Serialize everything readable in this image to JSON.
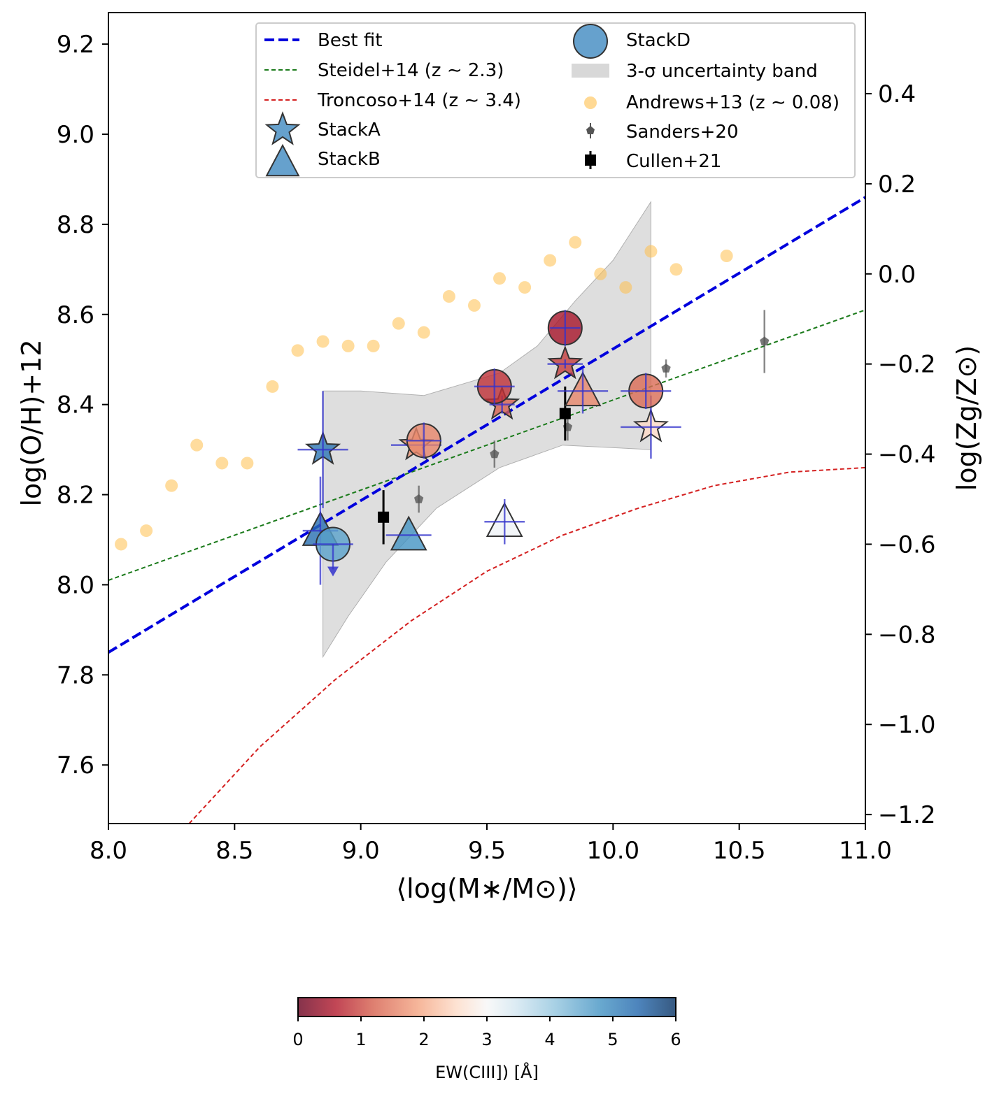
{
  "chart_data": {
    "type": "scatter",
    "xlabel": "⟨log(M∗/M⊙)⟩",
    "ylabel": "log(O/H)+12",
    "y2label": "log(Zg/Z⊙)",
    "xlim": [
      8.0,
      11.0
    ],
    "ylim": [
      7.47,
      9.27
    ],
    "y2lim": [
      -1.22,
      0.58
    ],
    "x_ticks": [
      "8.0",
      "8.5",
      "9.0",
      "9.5",
      "10.0",
      "10.5",
      "11.0"
    ],
    "y_ticks": [
      "7.6",
      "7.8",
      "8.0",
      "8.2",
      "8.4",
      "8.6",
      "8.8",
      "9.0",
      "9.2"
    ],
    "y2_ticks": [
      "−1.2",
      "−1.0",
      "−0.8",
      "−0.6",
      "−0.4",
      "−0.2",
      "0.0",
      "0.2",
      "0.4"
    ],
    "legend": {
      "best_fit": "Best fit",
      "steidel": "Steidel+14 (z ∼ 2.3)",
      "troncoso": "Troncoso+14 (z ∼ 3.4)",
      "stacka": "StackA",
      "stackb": "StackB",
      "stackd": "StackD",
      "band": "3-σ uncertainty band",
      "andrews": "Andrews+13 (z ∼ 0.08)",
      "sanders": "Sanders+20",
      "cullen": "Cullen+21"
    },
    "series": {
      "best_fit": {
        "x": [
          8.0,
          11.0
        ],
        "y": [
          7.85,
          8.86
        ]
      },
      "steidel": {
        "x": [
          8.0,
          11.0
        ],
        "y": [
          8.01,
          8.61
        ]
      },
      "troncoso": {
        "x": [
          8.32,
          8.6,
          8.9,
          9.2,
          9.5,
          9.8,
          10.1,
          10.4,
          10.7,
          11.0
        ],
        "y": [
          7.47,
          7.64,
          7.79,
          7.92,
          8.03,
          8.11,
          8.17,
          8.22,
          8.25,
          8.26
        ]
      },
      "band": {
        "upper": [
          [
            8.85,
            8.43
          ],
          [
            9.0,
            8.43
          ],
          [
            9.25,
            8.42
          ],
          [
            9.55,
            8.47
          ],
          [
            9.7,
            8.53
          ],
          [
            9.85,
            8.63
          ],
          [
            10.0,
            8.72
          ],
          [
            10.15,
            8.85
          ]
        ],
        "lower": [
          [
            10.15,
            8.3
          ],
          [
            9.8,
            8.31
          ],
          [
            9.55,
            8.26
          ],
          [
            9.3,
            8.17
          ],
          [
            9.1,
            8.05
          ],
          [
            8.95,
            7.93
          ],
          [
            8.85,
            7.84
          ]
        ]
      },
      "andrews": {
        "x": [
          8.05,
          8.15,
          8.25,
          8.35,
          8.45,
          8.55,
          8.65,
          8.75,
          8.85,
          8.95,
          9.05,
          9.15,
          9.25,
          9.35,
          9.45,
          9.55,
          9.65,
          9.75,
          9.85,
          9.95,
          10.05,
          10.15,
          10.25,
          10.45
        ],
        "y": [
          8.09,
          8.12,
          8.22,
          8.31,
          8.27,
          8.27,
          8.44,
          8.52,
          8.54,
          8.53,
          8.53,
          8.58,
          8.56,
          8.64,
          8.62,
          8.68,
          8.66,
          8.72,
          8.76,
          8.69,
          8.66,
          8.74,
          8.7,
          8.73
        ]
      },
      "sanders": {
        "points": [
          [
            9.23,
            8.19,
            0.03
          ],
          [
            9.53,
            8.29,
            0.03
          ],
          [
            9.82,
            8.35,
            0.03
          ],
          [
            10.21,
            8.48,
            0.02
          ],
          [
            10.6,
            8.54,
            0.07
          ]
        ]
      },
      "cullen": {
        "points": [
          [
            9.09,
            8.15,
            0.06
          ],
          [
            9.81,
            8.38,
            0.06
          ]
        ]
      },
      "stacks": [
        {
          "kind": "StackA",
          "x": 8.85,
          "y": 8.3,
          "xerr": 0.1,
          "yerr": 0.13,
          "ew": 5.2
        },
        {
          "kind": "StackA",
          "x": 9.22,
          "y": 8.31,
          "xerr": 0.1,
          "yerr": 0.0,
          "ew": 1.8
        },
        {
          "kind": "StackA",
          "x": 9.56,
          "y": 8.4,
          "xerr": 0.05,
          "yerr": 0.02,
          "ew": 1.2
        },
        {
          "kind": "StackA",
          "x": 9.81,
          "y": 8.49,
          "xerr": 0.07,
          "yerr": 0.01,
          "ew": 0.9
        },
        {
          "kind": "StackA",
          "x": 10.15,
          "y": 8.35,
          "xerr": 0.12,
          "yerr": 0.07,
          "ew": 2.5
        },
        {
          "kind": "StackB",
          "x": 8.84,
          "y": 8.12,
          "xerr": 0.07,
          "yerr": 0.12,
          "ew": 5.3
        },
        {
          "kind": "StackB",
          "x": 9.19,
          "y": 8.11,
          "xerr": 0.09,
          "yerr": 0.0,
          "ew": 4.8
        },
        {
          "kind": "StackB",
          "x": 9.57,
          "y": 8.14,
          "xerr": 0.08,
          "yerr": 0.05,
          "ew": 3.1
        },
        {
          "kind": "StackB",
          "x": 9.88,
          "y": 8.43,
          "xerr": 0.1,
          "yerr": 0.05,
          "ew": 1.6
        },
        {
          "kind": "StackD",
          "x": 8.89,
          "y": 8.09,
          "xerr": 0.08,
          "yerr": 0.0,
          "ew": 4.6,
          "upper_limit": true
        },
        {
          "kind": "StackD",
          "x": 9.25,
          "y": 8.32,
          "xerr": 0.07,
          "yerr": 0.04,
          "ew": 1.6
        },
        {
          "kind": "StackD",
          "x": 9.53,
          "y": 8.44,
          "xerr": 0.08,
          "yerr": 0.04,
          "ew": 0.8
        },
        {
          "kind": "StackD",
          "x": 9.81,
          "y": 8.57,
          "xerr": 0.06,
          "yerr": 0.04,
          "ew": 0.5
        },
        {
          "kind": "StackD",
          "x": 10.13,
          "y": 8.43,
          "xerr": 0.1,
          "yerr": 0.04,
          "ew": 1.3
        }
      ]
    },
    "colorbar": {
      "label": "EW(CIII]) [Å]",
      "ticks": [
        "0",
        "1",
        "2",
        "3",
        "4",
        "5",
        "6"
      ],
      "range": [
        0,
        6
      ]
    },
    "colors": {
      "best_fit": "#0000dd",
      "steidel": "#1a7a1a",
      "troncoso": "#d42020",
      "andrews": "#ffc04c",
      "band": "#bebebe",
      "errbar": "#3333cc",
      "cullen": "#000000",
      "sanders": "#555555"
    }
  }
}
